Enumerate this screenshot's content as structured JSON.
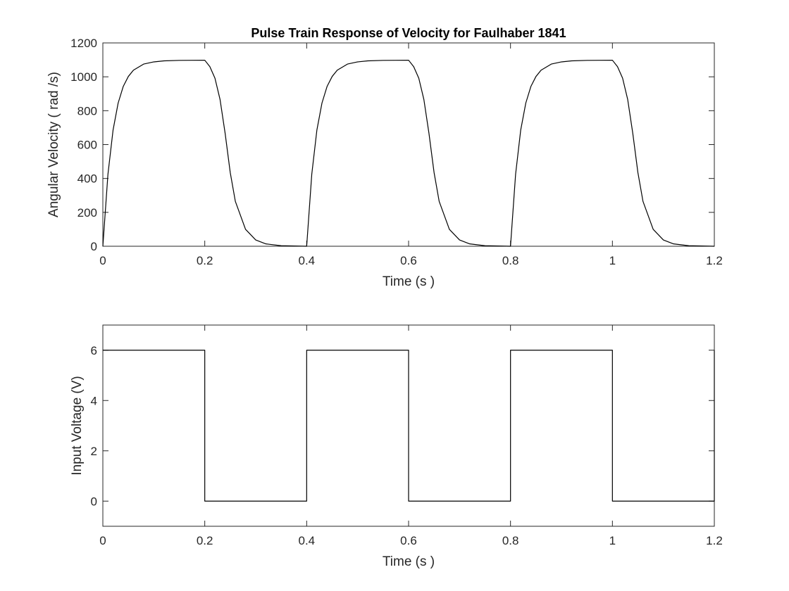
{
  "chart_data": [
    {
      "type": "line",
      "title": "Pulse Train Response of Velocity for Faulhaber 1841",
      "xlabel": "Time (s )",
      "ylabel": "Angular Velocity ( rad /s)",
      "xlim": [
        0,
        1.2
      ],
      "ylim": [
        0,
        1200
      ],
      "xticks": [
        0,
        0.2,
        0.4,
        0.6,
        0.8,
        1,
        1.2
      ],
      "xtick_labels": [
        "0",
        "0.2",
        "0.4",
        "0.6",
        "0.8",
        "1",
        "1.2"
      ],
      "yticks": [
        0,
        200,
        400,
        600,
        800,
        1000,
        1200
      ],
      "ytick_labels": [
        "0",
        "200",
        "400",
        "600",
        "800",
        "1000",
        "1200"
      ],
      "grid": false,
      "line_color": "#000000",
      "series": [
        {
          "x": [
            0,
            0.01,
            0.02,
            0.03,
            0.04,
            0.05,
            0.06,
            0.08,
            0.1,
            0.12,
            0.15,
            0.2,
            0.21,
            0.22,
            0.23,
            0.24,
            0.25,
            0.26,
            0.28,
            0.3,
            0.32,
            0.35,
            0.4,
            0.41,
            0.42,
            0.43,
            0.44,
            0.45,
            0.46,
            0.48,
            0.5,
            0.52,
            0.55,
            0.6,
            0.61,
            0.62,
            0.63,
            0.64,
            0.65,
            0.66,
            0.68,
            0.7,
            0.72,
            0.75,
            0.8,
            0.81,
            0.82,
            0.83,
            0.84,
            0.85,
            0.86,
            0.88,
            0.9,
            0.92,
            0.95,
            1.0,
            1.01,
            1.02,
            1.03,
            1.04,
            1.05,
            1.06,
            1.08,
            1.1,
            1.12,
            1.15,
            1.2
          ],
          "y": [
            0,
            425,
            685,
            845,
            943,
            1002,
            1039,
            1075,
            1088,
            1094,
            1097,
            1098,
            1060,
            992,
            866,
            666,
            435,
            265,
            100,
            37,
            14,
            3,
            0,
            425,
            685,
            845,
            943,
            1002,
            1039,
            1075,
            1088,
            1094,
            1097,
            1098,
            1060,
            992,
            866,
            666,
            435,
            265,
            100,
            37,
            14,
            3,
            0,
            425,
            685,
            845,
            943,
            1002,
            1039,
            1075,
            1088,
            1094,
            1097,
            1098,
            1060,
            992,
            866,
            666,
            435,
            265,
            100,
            37,
            14,
            3,
            0
          ]
        }
      ]
    },
    {
      "type": "line",
      "title": "",
      "xlabel": "Time (s )",
      "ylabel": "Input Voltage (V)",
      "xlim": [
        0,
        1.2
      ],
      "ylim": [
        -1,
        7
      ],
      "xticks": [
        0,
        0.2,
        0.4,
        0.6,
        0.8,
        1,
        1.2
      ],
      "xtick_labels": [
        "0",
        "0.2",
        "0.4",
        "0.6",
        "0.8",
        "1",
        "1.2"
      ],
      "yticks": [
        0,
        2,
        4,
        6
      ],
      "ytick_labels": [
        "0",
        "2",
        "4",
        "6"
      ],
      "grid": false,
      "line_color": "#000000",
      "series": [
        {
          "x": [
            0,
            0.2,
            0.2,
            0.4,
            0.4,
            0.6,
            0.6,
            0.8,
            0.8,
            1.0,
            1.0,
            1.2,
            1.2
          ],
          "y": [
            6,
            6,
            0,
            0,
            6,
            6,
            0,
            0,
            6,
            6,
            0,
            0,
            6
          ]
        }
      ]
    }
  ]
}
